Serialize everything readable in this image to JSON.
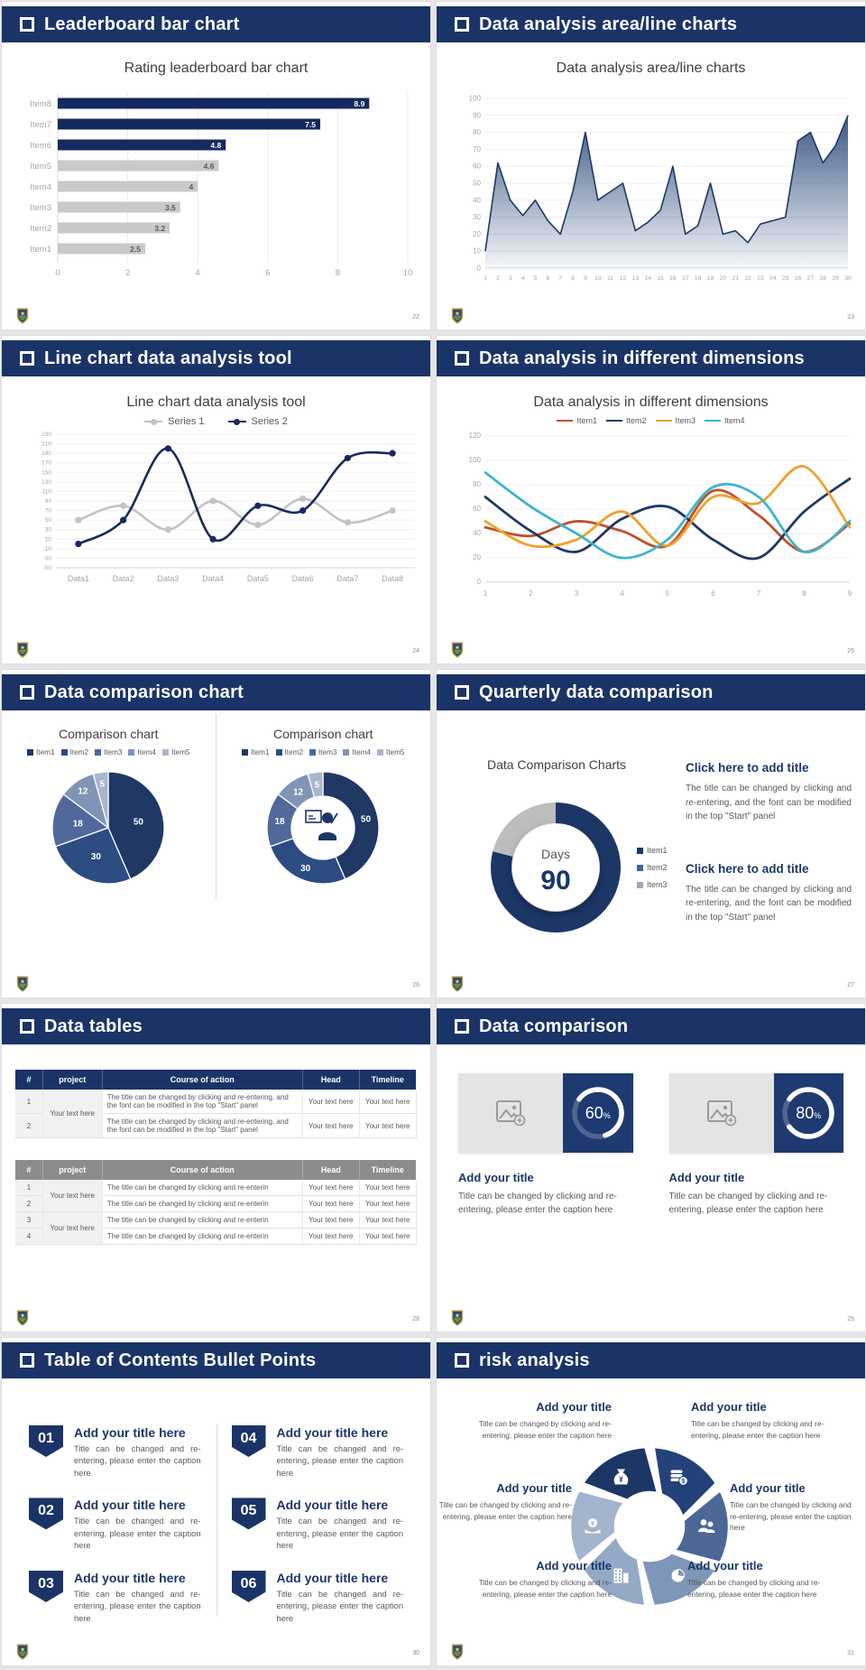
{
  "ui": {
    "background": "#e6e6e6",
    "accent_navy": "#1b3467",
    "slides": [
      {
        "header": "Leaderboard bar chart",
        "page": "22"
      },
      {
        "header": "Data analysis area/line charts",
        "page": "23"
      },
      {
        "header": "Line chart data analysis tool",
        "page": "24"
      },
      {
        "header": "Data analysis in different dimensions",
        "page": "25"
      },
      {
        "header": "Data comparison chart",
        "page": "26"
      },
      {
        "header": "Quarterly data comparison",
        "page": "27",
        "blocks": [
          {
            "title": "Click here to add title",
            "body": "The title can be changed by clicking and re-entering, and the font can be modified in the top \"Start\" panel"
          },
          {
            "title": "Click here to add title",
            "body": "The title can be changed by clicking and re-entering, and the font can be modified in the top \"Start\" panel"
          }
        ]
      },
      {
        "header": "Data tables",
        "page": "28"
      },
      {
        "header": "Data comparison",
        "page": "29",
        "cards": [
          {
            "percent": "60",
            "unit": "%",
            "title": "Add your title",
            "caption": "Title can be changed by clicking and re-entering, please enter the caption here"
          },
          {
            "percent": "80",
            "unit": "%",
            "title": "Add your title",
            "caption": "Title can be changed by clicking and re-entering, please enter the caption here"
          }
        ]
      },
      {
        "header": "Table of Contents Bullet Points",
        "page": "30",
        "items": [
          {
            "num": "01",
            "title": "Add your title here",
            "caption": "Title can be changed and re-entering, please enter the caption here"
          },
          {
            "num": "02",
            "title": "Add your title here",
            "caption": "Title can be changed and re-entering, please enter the caption here"
          },
          {
            "num": "03",
            "title": "Add your title here",
            "caption": "Title can be changed and re-entering, please enter the caption here"
          },
          {
            "num": "04",
            "title": "Add your title here",
            "caption": "Title can be changed and re-entering, please enter the caption here"
          },
          {
            "num": "05",
            "title": "Add your title here",
            "caption": "Title can be changed and re-entering, please enter the caption here"
          },
          {
            "num": "06",
            "title": "Add your title here",
            "caption": "Title can be changed and re-entering, please enter the caption here"
          }
        ]
      },
      {
        "header": "risk analysis",
        "page": "31",
        "labels": [
          {
            "title": "Add your title",
            "caption": "Title can be changed by clicking and re-entering, please enter the caption here"
          },
          {
            "title": "Add your title",
            "caption": "Title can be changed by clicking and re-entering, please enter the caption here"
          },
          {
            "title": "Add your title",
            "caption": "Title can be changed by clicking and re-entering, please enter the caption here"
          },
          {
            "title": "Add your title",
            "caption": "Title can be changed by clicking and re-entering, please enter the caption here"
          },
          {
            "title": "Add your title",
            "caption": "Title can be changed by clicking and re-entering, please enter the caption here"
          },
          {
            "title": "Add your title",
            "caption": "Title can be changed by clicking and re-entering, please enter the caption here"
          }
        ],
        "wheel": [
          {
            "icon": "coins-icon",
            "glyph": "$",
            "color": "#24417a"
          },
          {
            "icon": "people-icon",
            "glyph": "",
            "color": "#4a6795"
          },
          {
            "icon": "piechart-icon",
            "glyph": "",
            "color": "#7e96b8"
          },
          {
            "icon": "building-icon",
            "glyph": "",
            "color": "#93a9c6"
          },
          {
            "icon": "hand-coin-icon",
            "glyph": "¥",
            "color": "#a3b4cd"
          },
          {
            "icon": "moneybag-icon",
            "glyph": "¥",
            "color": "#1c3666"
          }
        ]
      }
    ]
  },
  "chart_data": [
    {
      "type": "bar",
      "orientation": "horizontal",
      "title": "Rating leaderboard bar chart",
      "categories": [
        "Item8",
        "Item7",
        "Item6",
        "Item5",
        "Item4",
        "Item3",
        "Item2",
        "Item1"
      ],
      "values": [
        8.9,
        7.5,
        4.8,
        4.6,
        4,
        3.5,
        3.2,
        2.5
      ],
      "bar_colors": [
        "#16295f",
        "#16295f",
        "#16295f",
        "#c9c9c9",
        "#c9c9c9",
        "#c9c9c9",
        "#c9c9c9",
        "#c9c9c9"
      ],
      "xlim": [
        0,
        10
      ],
      "xticks": [
        0,
        2,
        4,
        6,
        8,
        10
      ],
      "grid": true
    },
    {
      "type": "area",
      "title": "Data analysis area/line charts",
      "x": [
        1,
        2,
        3,
        4,
        5,
        6,
        7,
        8,
        9,
        10,
        11,
        12,
        13,
        14,
        15,
        16,
        17,
        18,
        19,
        20,
        21,
        22,
        23,
        24,
        25,
        26,
        27,
        28,
        29,
        30
      ],
      "values": [
        10,
        62,
        40,
        31,
        40,
        28,
        20,
        45,
        80,
        40,
        45,
        50,
        22,
        27,
        34,
        60,
        20,
        25,
        50,
        20,
        22,
        15,
        26,
        28,
        30,
        75,
        80,
        62,
        72,
        90
      ],
      "ylim": [
        0,
        100
      ],
      "yticks": [
        0,
        10,
        20,
        30,
        40,
        50,
        60,
        70,
        80,
        90,
        100
      ],
      "line_color": "#1f3864",
      "fill_color": "#33507f",
      "grid": true
    },
    {
      "type": "line",
      "smooth": true,
      "markers": true,
      "title": "Line chart data analysis tool",
      "categories": [
        "Data1",
        "Data2",
        "Data3",
        "Data4",
        "Data5",
        "Data6",
        "Data7",
        "Data8"
      ],
      "series": [
        {
          "name": "Series 1",
          "color": "#c3c3c3",
          "values": [
            50,
            80,
            30,
            90,
            40,
            95,
            45,
            70
          ]
        },
        {
          "name": "Series 2",
          "color": "#17295e",
          "values": [
            0,
            50,
            200,
            10,
            80,
            70,
            180,
            190
          ]
        }
      ],
      "ylim": [
        -50,
        230
      ],
      "yticks": [
        230,
        210,
        190,
        170,
        150,
        130,
        110,
        90,
        70,
        50,
        30,
        10,
        -10,
        -30,
        -50
      ],
      "grid": true,
      "legend_position": "top"
    },
    {
      "type": "line",
      "smooth": true,
      "markers": false,
      "title": "Data analysis in different dimensions",
      "x": [
        1,
        2,
        3,
        4,
        5,
        6,
        7,
        8,
        9
      ],
      "series": [
        {
          "name": "Item1",
          "color": "#c0502a",
          "values": [
            45,
            38,
            50,
            42,
            30,
            75,
            55,
            25,
            48
          ]
        },
        {
          "name": "Item2",
          "color": "#1f3864",
          "values": [
            70,
            42,
            25,
            52,
            62,
            35,
            20,
            58,
            85
          ]
        },
        {
          "name": "Item3",
          "color": "#f0a02c",
          "values": [
            50,
            30,
            35,
            58,
            30,
            70,
            65,
            95,
            45
          ]
        },
        {
          "name": "Item4",
          "color": "#3fb4cc",
          "values": [
            90,
            62,
            40,
            20,
            35,
            78,
            70,
            25,
            50
          ]
        }
      ],
      "ylim": [
        0,
        120
      ],
      "yticks": [
        0,
        20,
        40,
        60,
        80,
        100,
        120
      ],
      "grid": true,
      "legend_position": "top"
    },
    {
      "type": "pie",
      "title": "Comparison chart",
      "labels": [
        "Item1",
        "Item2",
        "Item3",
        "Item4",
        "Item5"
      ],
      "values": [
        50,
        30,
        18,
        12,
        5
      ],
      "colors": [
        "#1f3864",
        "#2c4c82",
        "#50699a",
        "#8094b5",
        "#a9b6cc"
      ],
      "legend_position": "top"
    },
    {
      "type": "donut",
      "title": "Comparison chart",
      "labels": [
        "Item1",
        "Item2",
        "Item3",
        "Item4",
        "Item5"
      ],
      "values": [
        50,
        30,
        18,
        12,
        5
      ],
      "colors": [
        "#1f3864",
        "#2c4c82",
        "#50699a",
        "#8094b5",
        "#a9b6cc"
      ],
      "center_icon": "presenter-icon",
      "legend_position": "top"
    },
    {
      "type": "donut",
      "title": "Data Comparison Charts",
      "center_label": "Days",
      "center_value": "90",
      "segments": [
        {
          "value": 79,
          "color": "#1c3666"
        },
        {
          "value": 21,
          "color": "#bdbdbd"
        }
      ],
      "legend_items": [
        {
          "name": "Item1",
          "color": "#1c3666"
        },
        {
          "name": "Item2",
          "color": "#44629b"
        },
        {
          "name": "Item3",
          "color": "#9aa9c4"
        }
      ]
    },
    {
      "type": "table",
      "style": "navy-header",
      "headers": [
        "#",
        "project",
        "Course of action",
        "Head",
        "Timeline"
      ],
      "merged_project": "Your text here",
      "rows": [
        {
          "num": "1",
          "course": "The title can be changed by clicking and re-entering, and the font can be modified in the top \"Start\" panel",
          "head": "Your text here",
          "timeline": "Your text here"
        },
        {
          "num": "2",
          "course": "The title can be changed by clicking and re-entering, and the font can be modified in the top \"Start\" panel",
          "head": "Your text here",
          "timeline": "Your text here"
        }
      ]
    },
    {
      "type": "table",
      "style": "gray-header",
      "headers": [
        "#",
        "project",
        "Course of action",
        "Head",
        "Timeline"
      ],
      "merged_project": [
        "Your text here",
        "Your text here"
      ],
      "rows": [
        {
          "num": "1",
          "course": "The title can be changed by clicking and re-enterin",
          "head": "Your text here",
          "timeline": "Your text here"
        },
        {
          "num": "2",
          "course": "The title can be changed by clicking and re-enterin",
          "head": "Your text here",
          "timeline": "Your text here"
        },
        {
          "num": "3",
          "course": "The title can be changed by clicking and re-enterin",
          "head": "Your text here",
          "timeline": "Your text here"
        },
        {
          "num": "4",
          "course": "The title can be changed by clicking and re-enterin",
          "head": "Your text here",
          "timeline": "Your text here"
        }
      ]
    },
    {
      "type": "donut",
      "subtype": "progress-rings",
      "series": [
        {
          "name": "Add your title",
          "value": 60,
          "unit": "%"
        },
        {
          "name": "Add your title",
          "value": 80,
          "unit": "%"
        }
      ],
      "ring_color": "#ffffff",
      "panel_color": "#1e3a70"
    }
  ]
}
